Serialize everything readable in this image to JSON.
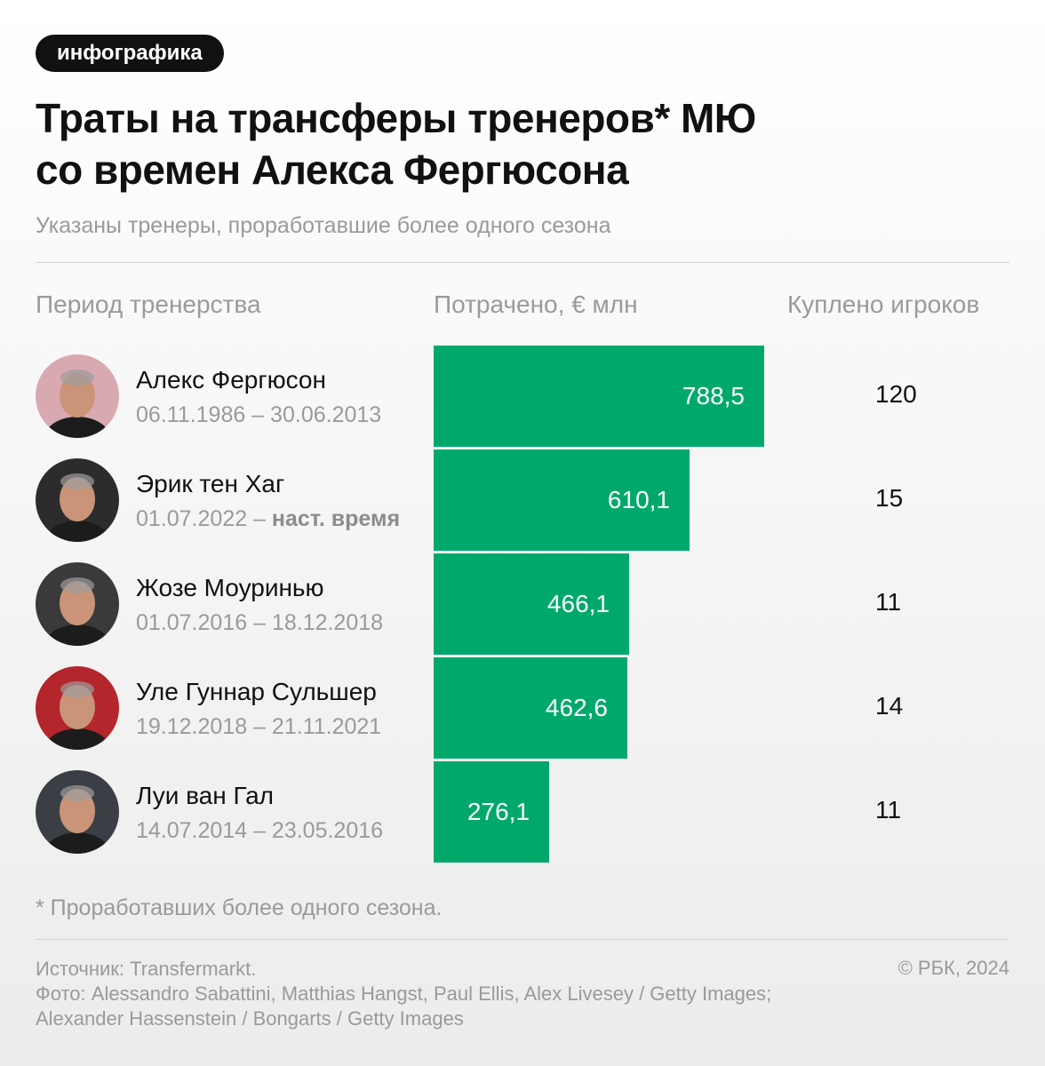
{
  "tag": "инфографика",
  "title_lines": [
    "Траты на трансферы тренеров* МЮ",
    "со времен Алекса Фергюсона"
  ],
  "subtitle": "Указаны тренеры, проработавшие более одного сезона",
  "columns": {
    "period": "Период тренерства",
    "spent": "Потрачено, € млн",
    "bought": "Куплено игроков"
  },
  "coaches": [
    {
      "name": "Алекс Фергюсон",
      "period": "06.11.1986 – 30.06.2013",
      "period_note": "",
      "avatar_bg": "#d9a9b2",
      "avatar_icon": "portrait-icon"
    },
    {
      "name": "Эрик тен Хаг",
      "period": "01.07.2022 – ",
      "period_note": "наст. время",
      "avatar_bg": "#2c2c2c",
      "avatar_icon": "portrait-icon"
    },
    {
      "name": "Жозе Моуринью",
      "period": "01.07.2016 – 18.12.2018",
      "period_note": "",
      "avatar_bg": "#3a3a3a",
      "avatar_icon": "portrait-icon"
    },
    {
      "name": "Уле Гуннар Сульшер",
      "period": "19.12.2018 – 21.11.2021",
      "period_note": "",
      "avatar_bg": "#b3262c",
      "avatar_icon": "portrait-icon"
    },
    {
      "name": "Луи ван Гал",
      "period": "14.07.2014 – 23.05.2016",
      "period_note": "",
      "avatar_bg": "#3b3f45",
      "avatar_icon": "portrait-icon"
    }
  ],
  "chart_data": {
    "type": "bar",
    "orientation": "horizontal",
    "categories": [
      "Алекс Фергюсон",
      "Эрик тен Хаг",
      "Жозе Моуринью",
      "Уле Гуннар Сульшер",
      "Луи ван Гал"
    ],
    "values": [
      788.5,
      610.1,
      466.1,
      462.6,
      276.1
    ],
    "value_labels": [
      "788,5",
      "610,1",
      "466,1",
      "462,6",
      "276,1"
    ],
    "secondary_values": [
      120,
      15,
      11,
      14,
      11
    ],
    "xlabel": "Потрачено, € млн",
    "bar_color": "#00a96b",
    "grid": false
  },
  "footnote": "* Проработавших более одного сезона.",
  "source_lines": [
    "Источник: Transfermarkt.",
    "Фото: Alessandro Sabattini, Matthias Hangst, Paul Ellis, Alex Livesey / Getty Images; Alexander Hassenstein / Bongarts / Getty Images"
  ],
  "copyright": "© РБК, 2024"
}
